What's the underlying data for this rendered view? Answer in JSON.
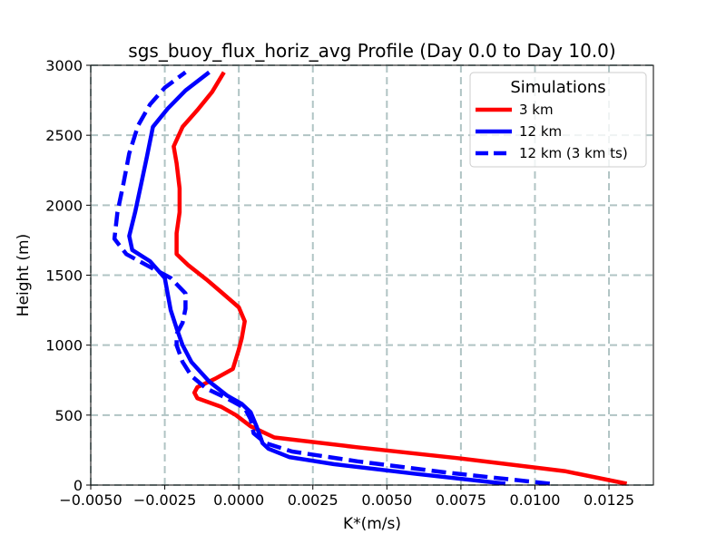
{
  "chart_data": {
    "type": "line",
    "title": "sgs_buoy_flux_horiz_avg Profile (Day 0.0 to Day 10.0)",
    "xlabel": "K*(m/s)",
    "ylabel": "Height (m)",
    "xlim": [
      -0.005,
      0.014
    ],
    "ylim": [
      0,
      3000
    ],
    "xticks": [
      -0.005,
      -0.0025,
      0.0,
      0.0025,
      0.005,
      0.0075,
      0.01,
      0.0125
    ],
    "xtick_labels": [
      "−0.0050",
      "−0.0025",
      "0.0000",
      "0.0025",
      "0.0050",
      "0.0075",
      "0.0100",
      "0.0125"
    ],
    "yticks": [
      0,
      500,
      1000,
      1500,
      2000,
      2500,
      3000
    ],
    "ytick_labels": [
      "0",
      "500",
      "1000",
      "1500",
      "2000",
      "2500",
      "3000"
    ],
    "grid": true,
    "legend": {
      "title": "Simulations",
      "placement": "upper right"
    },
    "series": [
      {
        "name": "3 km",
        "color": "#ff0000",
        "linestyle": "solid",
        "points": [
          [
            0.0131,
            10
          ],
          [
            0.011,
            100
          ],
          [
            0.0075,
            190
          ],
          [
            0.004,
            270
          ],
          [
            0.0012,
            340
          ],
          [
            0.0004,
            420
          ],
          [
            -0.0001,
            500
          ],
          [
            -0.0006,
            560
          ],
          [
            -0.0014,
            620
          ],
          [
            -0.0015,
            660
          ],
          [
            -0.0014,
            700
          ],
          [
            -0.0008,
            760
          ],
          [
            -0.0002,
            830
          ],
          [
            -0.0001,
            900
          ],
          [
            0.0,
            970
          ],
          [
            0.0001,
            1050
          ],
          [
            0.0002,
            1170
          ],
          [
            0.0,
            1270
          ],
          [
            -0.0006,
            1380
          ],
          [
            -0.0011,
            1470
          ],
          [
            -0.0017,
            1570
          ],
          [
            -0.0021,
            1650
          ],
          [
            -0.0021,
            1800
          ],
          [
            -0.002,
            1950
          ],
          [
            -0.002,
            2120
          ],
          [
            -0.0021,
            2300
          ],
          [
            -0.0022,
            2420
          ],
          [
            -0.0019,
            2560
          ],
          [
            -0.0014,
            2680
          ],
          [
            -0.0009,
            2810
          ],
          [
            -0.0005,
            2950
          ]
        ]
      },
      {
        "name": "12 km",
        "color": "#0000ff",
        "linestyle": "solid",
        "points": [
          [
            0.009,
            10
          ],
          [
            0.006,
            80
          ],
          [
            0.0032,
            150
          ],
          [
            0.0017,
            200
          ],
          [
            0.001,
            260
          ],
          [
            0.0008,
            300
          ],
          [
            0.0007,
            360
          ],
          [
            0.0006,
            420
          ],
          [
            0.0004,
            520
          ],
          [
            0.0001,
            580
          ],
          [
            -0.0004,
            640
          ],
          [
            -0.001,
            740
          ],
          [
            -0.0016,
            880
          ],
          [
            -0.0019,
            1000
          ],
          [
            -0.0021,
            1120
          ],
          [
            -0.0023,
            1250
          ],
          [
            -0.0025,
            1480
          ],
          [
            -0.003,
            1600
          ],
          [
            -0.0036,
            1680
          ],
          [
            -0.0037,
            1780
          ],
          [
            -0.0035,
            1950
          ],
          [
            -0.0033,
            2150
          ],
          [
            -0.0031,
            2350
          ],
          [
            -0.0029,
            2560
          ],
          [
            -0.0024,
            2690
          ],
          [
            -0.0018,
            2820
          ],
          [
            -0.001,
            2950
          ]
        ]
      },
      {
        "name": "12 km (3 km ts)",
        "color": "#0000ff",
        "linestyle": "dashed",
        "points": [
          [
            0.0105,
            10
          ],
          [
            0.007,
            90
          ],
          [
            0.004,
            170
          ],
          [
            0.0018,
            240
          ],
          [
            0.0009,
            300
          ],
          [
            0.0005,
            370
          ],
          [
            0.0004,
            470
          ],
          [
            0.0002,
            550
          ],
          [
            -0.0004,
            620
          ],
          [
            -0.0011,
            690
          ],
          [
            -0.0016,
            780
          ],
          [
            -0.0019,
            880
          ],
          [
            -0.0021,
            1000
          ],
          [
            -0.0021,
            1080
          ],
          [
            -0.0019,
            1160
          ],
          [
            -0.0018,
            1260
          ],
          [
            -0.0018,
            1370
          ],
          [
            -0.0023,
            1480
          ],
          [
            -0.0031,
            1570
          ],
          [
            -0.0038,
            1650
          ],
          [
            -0.0042,
            1760
          ],
          [
            -0.0041,
            1950
          ],
          [
            -0.0039,
            2150
          ],
          [
            -0.0037,
            2370
          ],
          [
            -0.0034,
            2570
          ],
          [
            -0.003,
            2720
          ],
          [
            -0.0025,
            2840
          ],
          [
            -0.0018,
            2950
          ]
        ]
      }
    ]
  }
}
